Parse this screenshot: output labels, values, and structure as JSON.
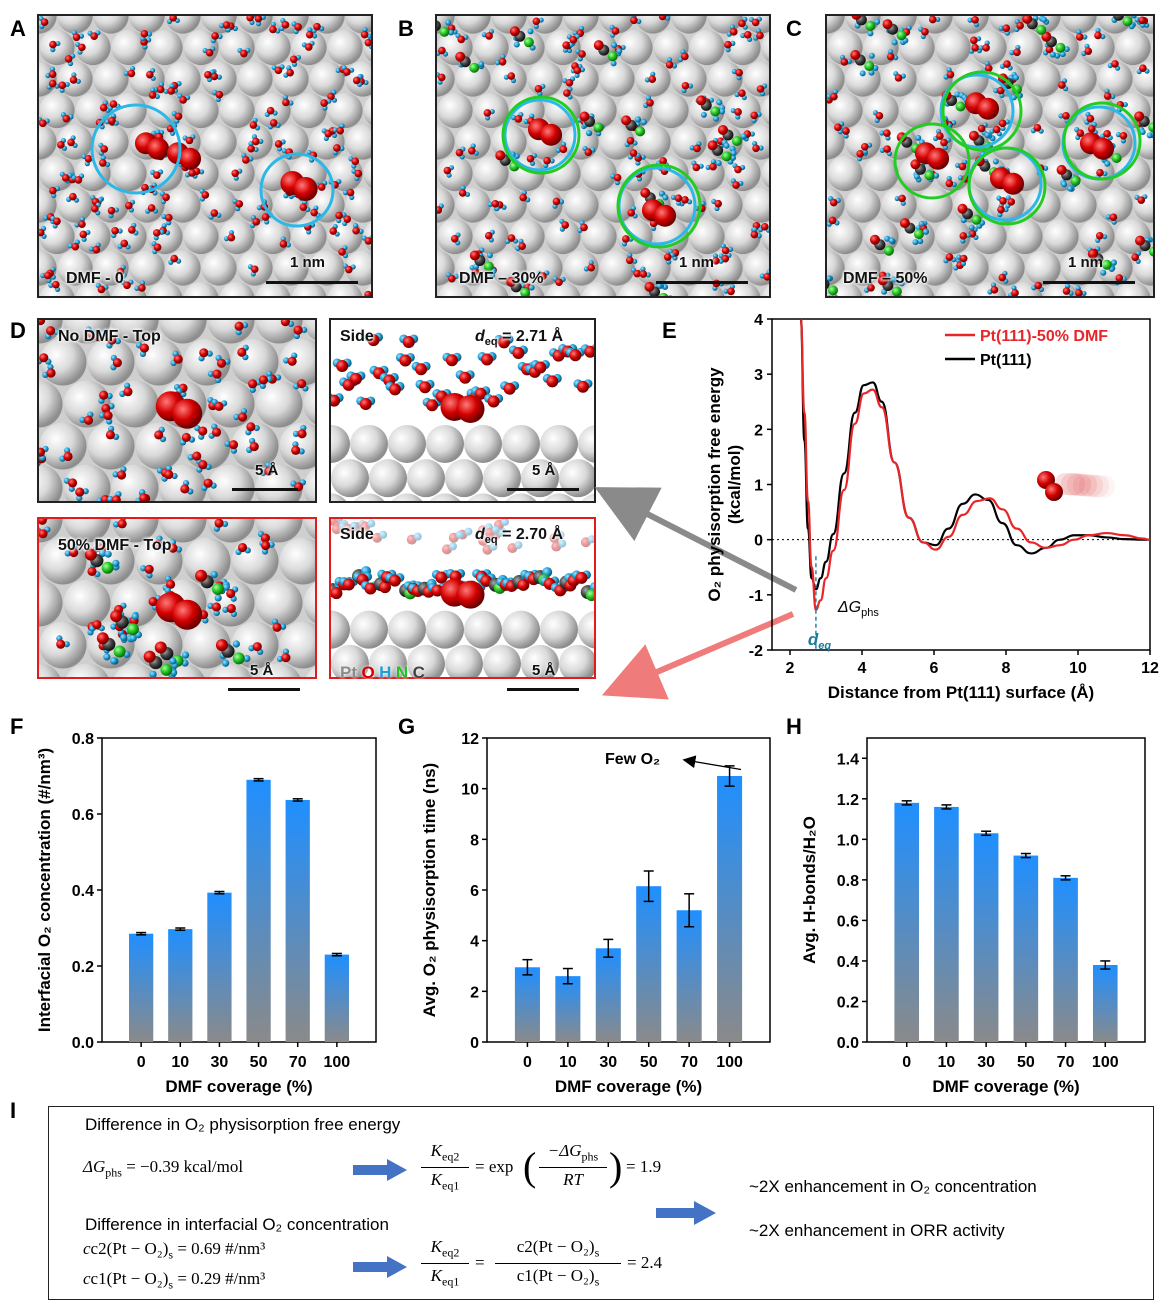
{
  "panels": {
    "A": {
      "letter": "A",
      "caption": "DMF - 0",
      "scale": "1 nm"
    },
    "B": {
      "letter": "B",
      "caption": "DMF – 30%",
      "scale": "1 nm"
    },
    "C": {
      "letter": "C",
      "caption": "DMF – 50%",
      "scale": "1 nm"
    },
    "D": {
      "letter": "D",
      "top1_caption": "No DMF - Top",
      "top1_scale": "5 Å",
      "side1_caption": "Side",
      "side1_deq_label": "d",
      "side1_deq_sub": "eq",
      "side1_deq_value": " = 2.71 Å",
      "side1_scale": "5 Å",
      "top2_caption": "50% DMF - Top",
      "top2_scale": "5 Å",
      "side2_caption": "Side",
      "side2_deq_label": "d",
      "side2_deq_sub": "eq",
      "side2_deq_value": " = 2.70 Å",
      "side2_scale": "5 Å",
      "legend_pt": "Pt",
      "legend_o": "O",
      "legend_h": "H",
      "legend_n": "N",
      "legend_c": "C"
    },
    "E": {
      "letter": "E"
    },
    "F": {
      "letter": "F"
    },
    "G": {
      "letter": "G"
    },
    "H": {
      "letter": "H"
    },
    "I": {
      "letter": "I"
    }
  },
  "colors": {
    "water_o": "#d40000",
    "water_h": "#1f9fd6",
    "pt": "#d9d9d9",
    "nitrogen": "#22c322",
    "carbon": "#444444",
    "circle_cyan": "#2bb8e8",
    "circle_green": "#22cc22",
    "panel_red_border": "#e21c1c",
    "line_red": "#e8262a",
    "line_black": "#000000",
    "bar_top": "#1f8fff",
    "bar_bottom": "#8a8a8a"
  },
  "chart_data": [
    {
      "id": "E",
      "type": "line",
      "xlabel": "Distance from Pt(111) surface (Å)",
      "ylabel": "O₂ physisorption free energy (kcal/mol)",
      "ylabel_line1": "O₂ physisorption free energy",
      "ylabel_line2": "(kcal/mol)",
      "xlim": [
        1.5,
        12
      ],
      "ylim": [
        -2,
        4
      ],
      "xticks": [
        "2",
        "4",
        "6",
        "8",
        "10",
        "12"
      ],
      "yticks": [
        "-2",
        "-1",
        "0",
        "1",
        "2",
        "3",
        "4"
      ],
      "legend_position": "top-right",
      "annotation_dG": "ΔG",
      "annotation_dG_sub": "phs",
      "annotation_deq": "d",
      "annotation_deq_sub": "eq",
      "series": [
        {
          "name": "Pt(111)-50% DMF",
          "color": "#e8262a",
          "x": [
            2.3,
            2.4,
            2.5,
            2.6,
            2.72,
            2.85,
            3.0,
            3.2,
            3.5,
            3.8,
            4.05,
            4.3,
            4.55,
            4.9,
            5.3,
            5.7,
            6.05,
            6.4,
            6.8,
            7.2,
            7.55,
            7.9,
            8.3,
            8.7,
            9.1,
            9.5,
            9.9,
            10.3,
            10.8,
            11.3,
            11.8,
            12.0
          ],
          "y": [
            4.0,
            2.3,
            0.7,
            -0.5,
            -1.27,
            -1.1,
            -0.7,
            -0.2,
            0.9,
            2.1,
            2.65,
            2.72,
            2.4,
            1.4,
            0.4,
            -0.05,
            -0.18,
            0.05,
            0.45,
            0.7,
            0.75,
            0.55,
            0.2,
            -0.05,
            -0.15,
            -0.1,
            0.0,
            0.08,
            0.12,
            0.08,
            0.02,
            0.0
          ]
        },
        {
          "name": "Pt(111)",
          "color": "#000000",
          "x": [
            2.3,
            2.4,
            2.5,
            2.6,
            2.72,
            2.85,
            3.0,
            3.2,
            3.5,
            3.8,
            4.05,
            4.3,
            4.55,
            4.9,
            5.3,
            5.7,
            6.05,
            6.4,
            6.8,
            7.15,
            7.5,
            7.9,
            8.3,
            8.7,
            9.1,
            9.5,
            9.9,
            10.3,
            10.8,
            11.3,
            11.8,
            12.0
          ],
          "y": [
            4.0,
            1.8,
            0.2,
            -0.7,
            -0.9,
            -0.7,
            -0.4,
            0.1,
            1.2,
            2.3,
            2.8,
            2.85,
            2.5,
            1.4,
            0.4,
            -0.05,
            -0.1,
            0.2,
            0.65,
            0.82,
            0.72,
            0.3,
            -0.1,
            -0.25,
            -0.15,
            0.0,
            0.08,
            0.08,
            0.04,
            0.01,
            0.0,
            0.0
          ]
        }
      ]
    },
    {
      "id": "F",
      "type": "bar",
      "categories": [
        "0",
        "10",
        "30",
        "50",
        "70",
        "100"
      ],
      "values": [
        0.285,
        0.297,
        0.393,
        0.69,
        0.637,
        0.23
      ],
      "errors": [
        0.003,
        0.003,
        0.003,
        0.003,
        0.003,
        0.003
      ],
      "xlabel": "DMF coverage (%)",
      "ylabel": "Interfacial O₂ concentration (#/nm³)",
      "ylim": [
        0,
        0.8
      ],
      "yticks": [
        "0.0",
        "0.2",
        "0.4",
        "0.6",
        "0.8"
      ]
    },
    {
      "id": "G",
      "type": "bar",
      "categories": [
        "0",
        "10",
        "30",
        "50",
        "70",
        "100"
      ],
      "values": [
        2.95,
        2.6,
        3.7,
        6.15,
        5.2,
        10.5
      ],
      "errors": [
        0.3,
        0.3,
        0.35,
        0.6,
        0.65,
        0.4
      ],
      "xlabel": "DMF coverage (%)",
      "ylabel": "Avg. O₂ physisorption time (ns)",
      "ylim": [
        0,
        12
      ],
      "yticks": [
        "0",
        "2",
        "4",
        "6",
        "8",
        "10",
        "12"
      ],
      "annotation": "Few O₂"
    },
    {
      "id": "H",
      "type": "bar",
      "categories": [
        "0",
        "10",
        "30",
        "50",
        "70",
        "100"
      ],
      "values": [
        1.18,
        1.16,
        1.03,
        0.92,
        0.81,
        0.38
      ],
      "errors": [
        0.01,
        0.01,
        0.01,
        0.01,
        0.01,
        0.02
      ],
      "xlabel": "DMF coverage (%)",
      "ylabel": "Avg. H-bonds/H₂O",
      "ylim": [
        0,
        1.5
      ],
      "yticks": [
        "0.0",
        "0.2",
        "0.4",
        "0.6",
        "0.8",
        "1.0",
        "1.2",
        "1.4"
      ]
    }
  ],
  "formula_box": {
    "heading1": "Difference in O₂ physisorption free energy",
    "dG_line": "ΔG",
    "dG_sub": "phs",
    "dG_value": "= −0.39 kcal/mol",
    "k_num": "K",
    "k_num_sub": "eq2",
    "k_den": "K",
    "k_den_sub": "eq1",
    "eq1_rhs": "= exp",
    "eq1_frac_num": "−ΔG",
    "eq1_frac_num_sub": "phs",
    "eq1_frac_den": "RT",
    "eq1_result": "= 1.9",
    "heading2": "Difference in interfacial O₂ concentration",
    "c2_line": "c2(Pt − O₂)",
    "c2_sub": "s",
    "c2_value": " = 0.69 #/nm³",
    "c1_line": "c1(Pt − O₂)",
    "c1_sub": "s",
    "c1_value": " = 0.29 #/nm³",
    "eq2_num": "c2(Pt − O₂)",
    "eq2_num_sub": "s",
    "eq2_den": "c1(Pt − O₂)",
    "eq2_den_sub": "s",
    "eq2_result": "= 2.4",
    "conclusion1": "~2X enhancement in O₂ concentration",
    "conclusion2": "~2X enhancement in ORR activity"
  }
}
